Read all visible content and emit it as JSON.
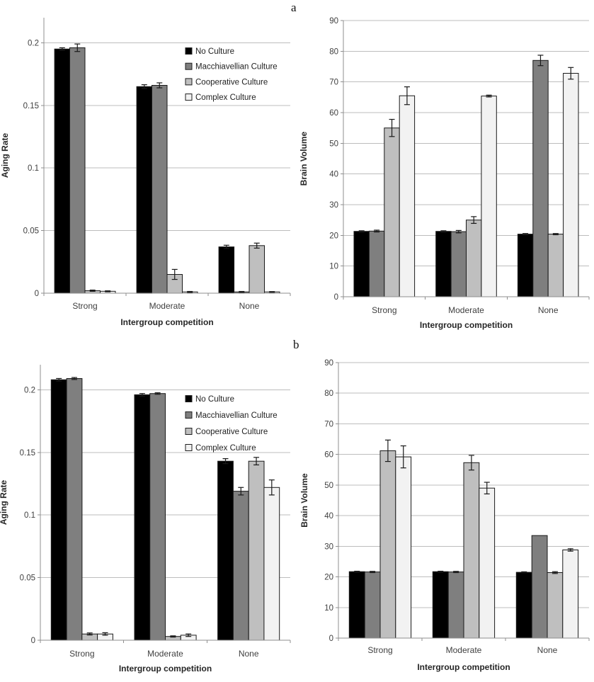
{
  "panels": [
    {
      "label": "a"
    },
    {
      "label": "b"
    }
  ],
  "palette": {
    "no_culture": "#000000",
    "macchiavellian_culture": "#7f7f7f",
    "cooperative_culture": "#bfbfbf",
    "complex_culture": "#f2f2f2",
    "bar_border": "#1a1a1a",
    "gridline": "#bdbdbd",
    "axis": "#8f8f8f",
    "error_bar": "#1a1a1a",
    "background": "#ffffff"
  },
  "chart_data": [
    {
      "type": "bar",
      "panel": "a",
      "ylabel": "Aging Rate",
      "xlabel": "Intergroup competition",
      "categories": [
        "Strong",
        "Moderate",
        "None"
      ],
      "ylim": [
        0,
        0.22
      ],
      "yticks": [
        0,
        0.05,
        0.1,
        0.15,
        0.2
      ],
      "ytick_labels": [
        "0",
        "0.05",
        "0.1",
        "0.15",
        "0.2"
      ],
      "grid": true,
      "legend": true,
      "legend_position": "inside-right",
      "series": [
        {
          "name": "No Culture",
          "color": "#000000",
          "values": [
            0.195,
            0.165,
            0.037
          ],
          "errors": [
            0.001,
            0.0015,
            0.0013
          ]
        },
        {
          "name": "Macchiavellian Culture",
          "color": "#7f7f7f",
          "values": [
            0.196,
            0.166,
            0.001
          ],
          "errors": [
            0.003,
            0.002,
            0.0004
          ]
        },
        {
          "name": "Cooperative Culture",
          "color": "#bfbfbf",
          "values": [
            0.002,
            0.015,
            0.038
          ],
          "errors": [
            0.0005,
            0.004,
            0.002
          ]
        },
        {
          "name": "Complex Culture",
          "color": "#f2f2f2",
          "values": [
            0.0015,
            0.001,
            0.001
          ],
          "errors": [
            0.0004,
            0.0004,
            0.0003
          ]
        }
      ]
    },
    {
      "type": "bar",
      "panel": "a",
      "ylabel": "Brain Volume",
      "xlabel": "Intergroup competition",
      "categories": [
        "Strong",
        "Moderate",
        "None"
      ],
      "ylim": [
        0,
        90
      ],
      "yticks": [
        0,
        10,
        20,
        30,
        40,
        50,
        60,
        70,
        80,
        90
      ],
      "ytick_labels": [
        "0",
        "10",
        "20",
        "30",
        "40",
        "50",
        "60",
        "70",
        "80",
        "90"
      ],
      "grid": true,
      "legend": false,
      "legend_position": null,
      "series": [
        {
          "name": "No Culture",
          "color": "#000000",
          "values": [
            21.3,
            21.3,
            20.4
          ],
          "errors": [
            0.2,
            0.2,
            0.2
          ]
        },
        {
          "name": "Macchiavellian Culture",
          "color": "#7f7f7f",
          "values": [
            21.4,
            21.2,
            77.0
          ],
          "errors": [
            0.3,
            0.4,
            1.7
          ]
        },
        {
          "name": "Cooperative Culture",
          "color": "#bfbfbf",
          "values": [
            55.0,
            25.0,
            20.4
          ],
          "errors": [
            2.8,
            1.1,
            0.2
          ]
        },
        {
          "name": "Complex Culture",
          "color": "#f2f2f2",
          "values": [
            65.5,
            65.4,
            72.8
          ],
          "errors": [
            2.9,
            0.3,
            1.9
          ]
        }
      ]
    },
    {
      "type": "bar",
      "panel": "b",
      "ylabel": "Aging Rate",
      "xlabel": "Intergroup competition",
      "categories": [
        "Strong",
        "Moderate",
        "None"
      ],
      "ylim": [
        0,
        0.22
      ],
      "yticks": [
        0,
        0.05,
        0.1,
        0.15,
        0.2
      ],
      "ytick_labels": [
        "0",
        "0.05",
        "0.1",
        "0.15",
        "0.2"
      ],
      "grid": true,
      "legend": true,
      "legend_position": "inside-right",
      "series": [
        {
          "name": "No Culture",
          "color": "#000000",
          "values": [
            0.208,
            0.196,
            0.143
          ],
          "errors": [
            0.001,
            0.001,
            0.002
          ]
        },
        {
          "name": "Macchiavellian Culture",
          "color": "#7f7f7f",
          "values": [
            0.209,
            0.197,
            0.119
          ],
          "errors": [
            0.0008,
            0.0006,
            0.003
          ]
        },
        {
          "name": "Cooperative Culture",
          "color": "#bfbfbf",
          "values": [
            0.005,
            0.003,
            0.143
          ],
          "errors": [
            0.0008,
            0.0005,
            0.003
          ]
        },
        {
          "name": "Complex Culture",
          "color": "#f2f2f2",
          "values": [
            0.005,
            0.004,
            0.122
          ],
          "errors": [
            0.001,
            0.001,
            0.006
          ]
        }
      ]
    },
    {
      "type": "bar",
      "panel": "b",
      "ylabel": "Brain Volume",
      "xlabel": "Intergroup competition",
      "categories": [
        "Strong",
        "Moderate",
        "None"
      ],
      "ylim": [
        0,
        90
      ],
      "yticks": [
        0,
        10,
        20,
        30,
        40,
        50,
        60,
        70,
        80,
        90
      ],
      "ytick_labels": [
        "0",
        "10",
        "20",
        "30",
        "40",
        "50",
        "60",
        "70",
        "80",
        "90"
      ],
      "grid": true,
      "legend": false,
      "legend_position": null,
      "series": [
        {
          "name": "No Culture",
          "color": "#000000",
          "values": [
            21.7,
            21.7,
            21.5
          ],
          "errors": [
            0.15,
            0.15,
            0.15
          ]
        },
        {
          "name": "Macchiavellian Culture",
          "color": "#7f7f7f",
          "values": [
            21.6,
            21.6,
            33.5
          ],
          "errors": [
            0.2,
            0.2,
            0
          ]
        },
        {
          "name": "Cooperative Culture",
          "color": "#bfbfbf",
          "values": [
            61.2,
            57.3,
            21.4
          ],
          "errors": [
            3.5,
            2.4,
            0.3
          ]
        },
        {
          "name": "Complex Culture",
          "color": "#f2f2f2",
          "values": [
            59.2,
            49.0,
            28.8
          ],
          "errors": [
            3.6,
            1.9,
            0.4
          ]
        }
      ]
    }
  ]
}
